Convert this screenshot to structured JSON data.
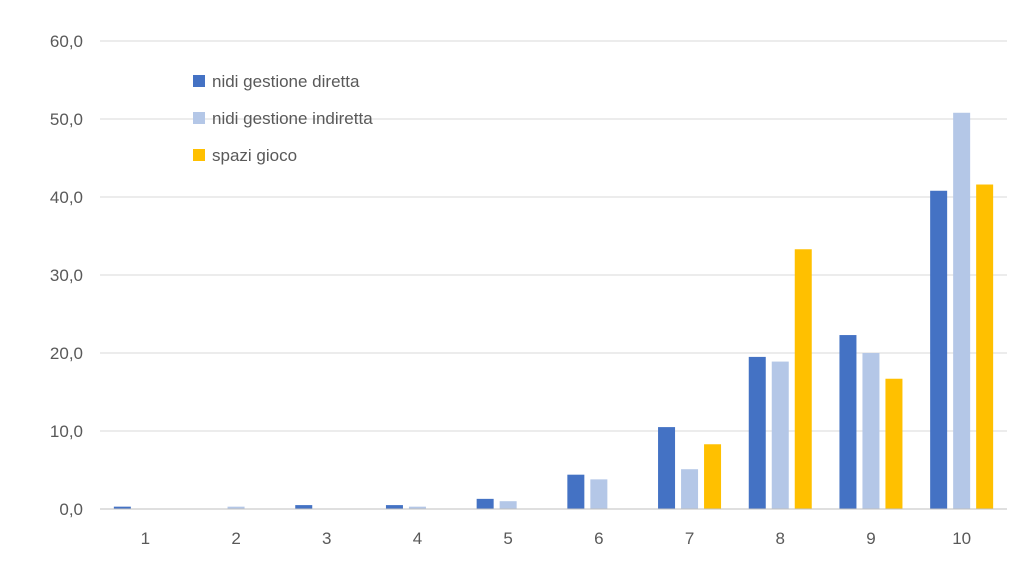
{
  "chart_data": {
    "type": "bar",
    "categories": [
      "1",
      "2",
      "3",
      "4",
      "5",
      "6",
      "7",
      "8",
      "9",
      "10"
    ],
    "series": [
      {
        "name": "nidi gestione diretta",
        "color": "#4472C4",
        "values": [
          0.3,
          0.0,
          0.5,
          0.5,
          1.3,
          4.4,
          10.5,
          19.5,
          22.3,
          40.8
        ]
      },
      {
        "name": "nidi gestione indiretta",
        "color": "#B4C7E7",
        "values": [
          0.0,
          0.3,
          0.0,
          0.3,
          1.0,
          3.8,
          5.1,
          18.9,
          20.0,
          50.8
        ]
      },
      {
        "name": "spazi gioco",
        "color": "#FFC000",
        "values": [
          0.0,
          0.0,
          0.0,
          0.0,
          0.0,
          0.0,
          8.3,
          33.3,
          16.7,
          41.6
        ]
      }
    ],
    "title": "",
    "xlabel": "",
    "ylabel": "",
    "ylim": [
      0,
      60
    ],
    "yticks": [
      "0,0",
      "10,0",
      "20,0",
      "30,0",
      "40,0",
      "50,0",
      "60,0"
    ],
    "grid": true,
    "legend_position": "top-left"
  }
}
